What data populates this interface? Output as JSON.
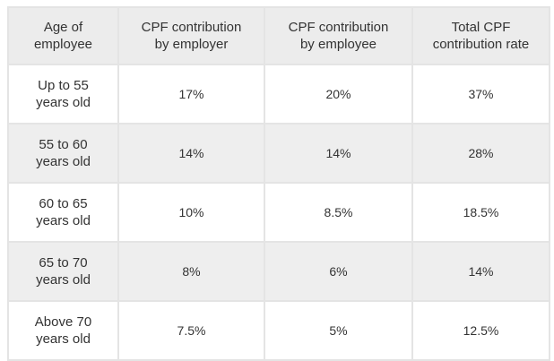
{
  "table": {
    "header": [
      "Age of\nemployee",
      "CPF contribution\nby employer",
      "CPF contribution\nby employee",
      "Total CPF\ncontribution rate"
    ],
    "rows": [
      [
        "Up to 55\nyears old",
        "17%",
        "20%",
        "37%"
      ],
      [
        "55 to 60\nyears old",
        "14%",
        "14%",
        "28%"
      ],
      [
        "60 to 65\nyears old",
        "10%",
        "8.5%",
        "18.5%"
      ],
      [
        "65 to 70\nyears old",
        "8%",
        "6%",
        "14%"
      ],
      [
        "Above 70\nyears old",
        "7.5%",
        "5%",
        "12.5%"
      ]
    ]
  }
}
